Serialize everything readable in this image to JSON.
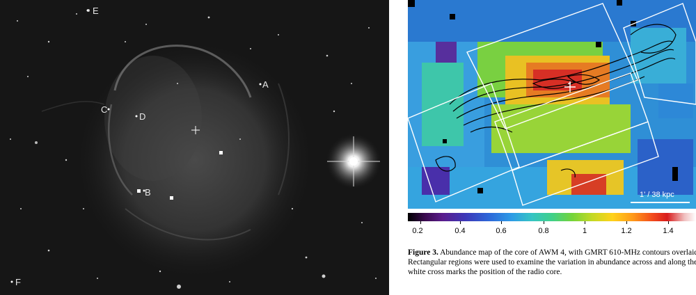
{
  "left_image": {
    "labels": [
      "A",
      "B",
      "C",
      "D",
      "E",
      "F"
    ]
  },
  "right_image": {
    "scale_bar_label": "1' / 38 kpc",
    "colorbar_ticks": [
      "0.2",
      "0.4",
      "0.6",
      "0.8",
      "1",
      "1.2",
      "1.4"
    ]
  },
  "caption": {
    "label": "Figure 3.",
    "text": "Abundance map of the core of AWM 4, with GMRT 610-MHz contours overlaid. Rectangular regions were used to examine the variation in abundance across and along the jet. The white cross marks the position of the radio core."
  }
}
